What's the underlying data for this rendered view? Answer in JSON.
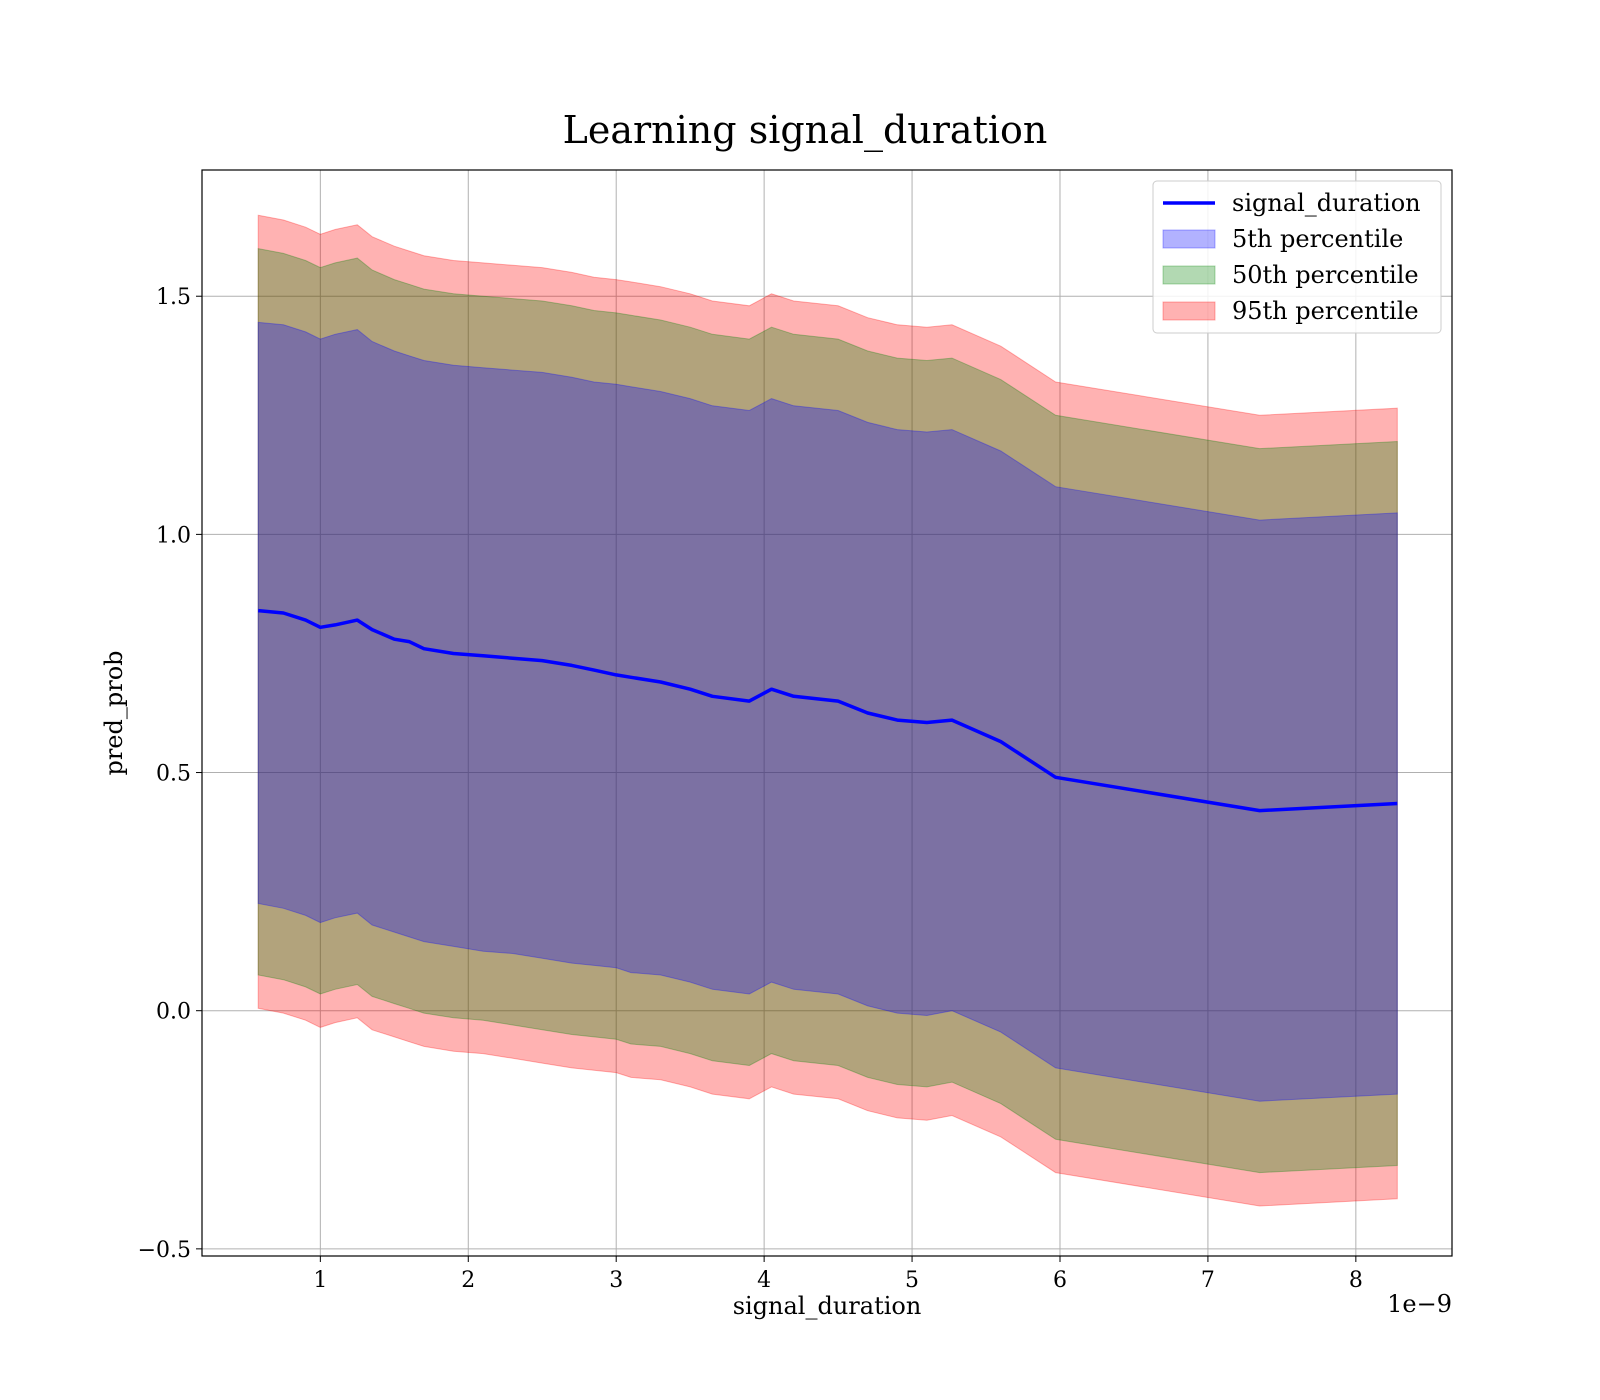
{
  "chart_data": {
    "type": "line",
    "title": "Learning signal_duration",
    "xlabel": "signal_duration",
    "ylabel": "pred_prob",
    "x_offset_text": "1e−9",
    "xlim": [
      0.2,
      8.65
    ],
    "ylim": [
      -0.515,
      1.765
    ],
    "x_ticks": [
      1,
      2,
      3,
      4,
      5,
      6,
      7,
      8
    ],
    "x_tick_labels": [
      "1",
      "2",
      "3",
      "4",
      "5",
      "6",
      "7",
      "8"
    ],
    "y_ticks": [
      -0.5,
      0.0,
      0.5,
      1.0,
      1.5
    ],
    "y_tick_labels": [
      "−0.5",
      "0.0",
      "0.5",
      "1.0",
      "1.5"
    ],
    "grid": true,
    "legend_position": "top-right",
    "x": [
      0.58,
      0.75,
      0.9,
      1.0,
      1.1,
      1.25,
      1.35,
      1.5,
      1.6,
      1.7,
      1.9,
      2.1,
      2.3,
      2.5,
      2.7,
      2.85,
      3.0,
      3.1,
      3.3,
      3.5,
      3.65,
      3.9,
      4.05,
      4.2,
      4.5,
      4.7,
      4.9,
      5.1,
      5.27,
      5.6,
      5.97,
      7.35,
      8.28
    ],
    "series": [
      {
        "name": "signal_duration",
        "kind": "line",
        "color": "#0000ff",
        "values": [
          0.84,
          0.835,
          0.82,
          0.805,
          0.81,
          0.82,
          0.8,
          0.78,
          0.775,
          0.76,
          0.75,
          0.745,
          0.74,
          0.735,
          0.725,
          0.715,
          0.705,
          0.7,
          0.69,
          0.675,
          0.66,
          0.65,
          0.675,
          0.66,
          0.65,
          0.625,
          0.61,
          0.605,
          0.61,
          0.565,
          0.49,
          0.42,
          0.435
        ]
      },
      {
        "name": "5th percentile",
        "kind": "band",
        "color": "#0000ff",
        "lower": [
          0.225,
          0.215,
          0.2,
          0.185,
          0.195,
          0.205,
          0.18,
          0.165,
          0.155,
          0.145,
          0.135,
          0.125,
          0.12,
          0.11,
          0.1,
          0.095,
          0.09,
          0.08,
          0.075,
          0.06,
          0.045,
          0.035,
          0.06,
          0.045,
          0.035,
          0.01,
          -0.005,
          -0.01,
          0.0,
          -0.045,
          -0.12,
          -0.19,
          -0.175
        ],
        "upper": [
          1.445,
          1.44,
          1.425,
          1.41,
          1.42,
          1.43,
          1.405,
          1.385,
          1.375,
          1.365,
          1.355,
          1.35,
          1.345,
          1.34,
          1.33,
          1.32,
          1.315,
          1.31,
          1.3,
          1.285,
          1.27,
          1.26,
          1.285,
          1.27,
          1.26,
          1.235,
          1.22,
          1.215,
          1.22,
          1.175,
          1.1,
          1.03,
          1.045
        ]
      },
      {
        "name": "50th percentile",
        "kind": "band",
        "color": "#008000",
        "lower": [
          0.075,
          0.065,
          0.05,
          0.035,
          0.045,
          0.055,
          0.03,
          0.015,
          0.005,
          -0.005,
          -0.015,
          -0.02,
          -0.03,
          -0.04,
          -0.05,
          -0.055,
          -0.06,
          -0.07,
          -0.075,
          -0.09,
          -0.105,
          -0.115,
          -0.09,
          -0.105,
          -0.115,
          -0.14,
          -0.155,
          -0.16,
          -0.15,
          -0.195,
          -0.27,
          -0.34,
          -0.325
        ],
        "upper": [
          1.6,
          1.59,
          1.575,
          1.56,
          1.57,
          1.58,
          1.555,
          1.535,
          1.525,
          1.515,
          1.505,
          1.5,
          1.495,
          1.49,
          1.48,
          1.47,
          1.465,
          1.46,
          1.45,
          1.435,
          1.42,
          1.41,
          1.435,
          1.42,
          1.41,
          1.385,
          1.37,
          1.365,
          1.37,
          1.325,
          1.25,
          1.18,
          1.195
        ]
      },
      {
        "name": "95th percentile",
        "kind": "band",
        "color": "#ff0000",
        "lower": [
          0.005,
          -0.005,
          -0.02,
          -0.035,
          -0.025,
          -0.015,
          -0.04,
          -0.055,
          -0.065,
          -0.075,
          -0.085,
          -0.09,
          -0.1,
          -0.11,
          -0.12,
          -0.125,
          -0.13,
          -0.14,
          -0.145,
          -0.16,
          -0.175,
          -0.185,
          -0.16,
          -0.175,
          -0.185,
          -0.21,
          -0.225,
          -0.23,
          -0.22,
          -0.265,
          -0.34,
          -0.41,
          -0.395
        ],
        "upper": [
          1.67,
          1.66,
          1.645,
          1.63,
          1.64,
          1.65,
          1.625,
          1.605,
          1.595,
          1.585,
          1.575,
          1.57,
          1.565,
          1.56,
          1.55,
          1.54,
          1.535,
          1.53,
          1.52,
          1.505,
          1.49,
          1.48,
          1.505,
          1.49,
          1.48,
          1.455,
          1.44,
          1.435,
          1.44,
          1.395,
          1.32,
          1.25,
          1.265
        ]
      }
    ]
  }
}
